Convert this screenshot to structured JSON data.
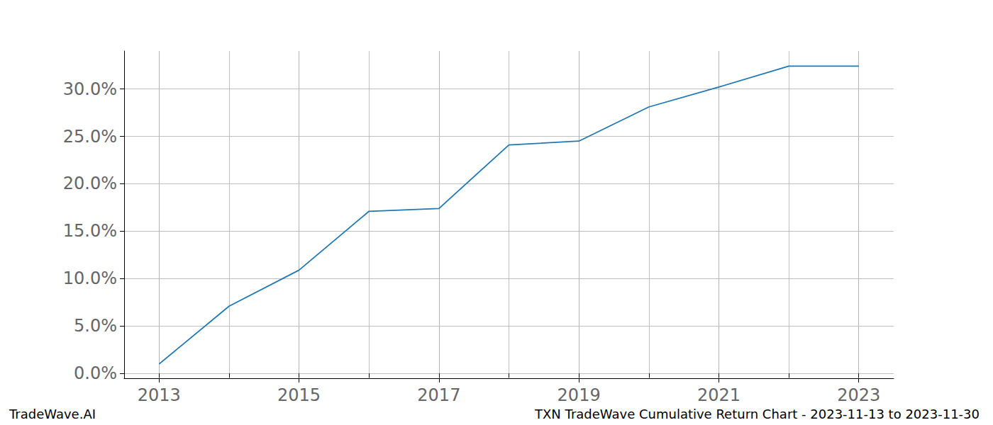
{
  "chart_data": {
    "type": "line",
    "title": "TXN TradeWave Cumulative Return Chart - 2023-11-13 to 2023-11-30",
    "annotations": [
      "TradeWave.AI"
    ],
    "x": [
      2013,
      2014,
      2015,
      2016,
      2017,
      2018,
      2019,
      2020,
      2021,
      2022,
      2023
    ],
    "values": [
      1.0,
      7.1,
      10.9,
      17.1,
      17.4,
      24.1,
      24.5,
      28.1,
      30.2,
      32.4,
      32.4
    ],
    "color": "#1f77b4",
    "xlim": [
      2012.5,
      2023.5
    ],
    "xticks": [
      2013,
      2015,
      2017,
      2019,
      2021,
      2023
    ],
    "ylim": [
      -0.5,
      34
    ],
    "yticks": [
      {
        "value": 0,
        "label": "0.0%"
      },
      {
        "value": 5,
        "label": "5.0%"
      },
      {
        "value": 10,
        "label": "10.0%"
      },
      {
        "value": 15,
        "label": "15.0%"
      },
      {
        "value": 20,
        "label": "20.0%"
      },
      {
        "value": 25,
        "label": "25.0%"
      },
      {
        "value": 30,
        "label": "30.0%"
      }
    ],
    "grid": true
  }
}
